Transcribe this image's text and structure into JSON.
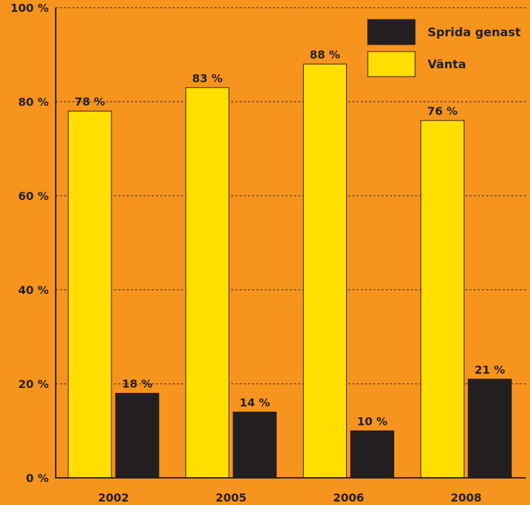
{
  "chart_data": {
    "type": "bar",
    "categories": [
      "2002",
      "2005",
      "2006",
      "2008"
    ],
    "series": [
      {
        "name": "Vänta",
        "values": [
          78,
          83,
          88,
          76
        ],
        "labels": [
          "78 %",
          "83 %",
          "88 %",
          "76 %"
        ],
        "color": "#ffde00"
      },
      {
        "name": "Sprida genast",
        "values": [
          18,
          14,
          10,
          21
        ],
        "labels": [
          "18 %",
          "14 %",
          "10 %",
          "21 %"
        ],
        "color": "#231f20"
      }
    ],
    "ylim": [
      0,
      100
    ],
    "yticks": [
      0,
      20,
      40,
      60,
      80,
      100
    ],
    "ytick_labels": [
      "0 %",
      "20 %",
      "40 %",
      "60 %",
      "80 %",
      "100 %"
    ],
    "grid": true,
    "legend": {
      "position": "top-right",
      "entries": [
        {
          "label": "Sprida genast",
          "color": "#231f20"
        },
        {
          "label": "Vänta",
          "color": "#ffde00"
        }
      ]
    },
    "background": "#f7941d",
    "axis_color": "#231f20"
  }
}
